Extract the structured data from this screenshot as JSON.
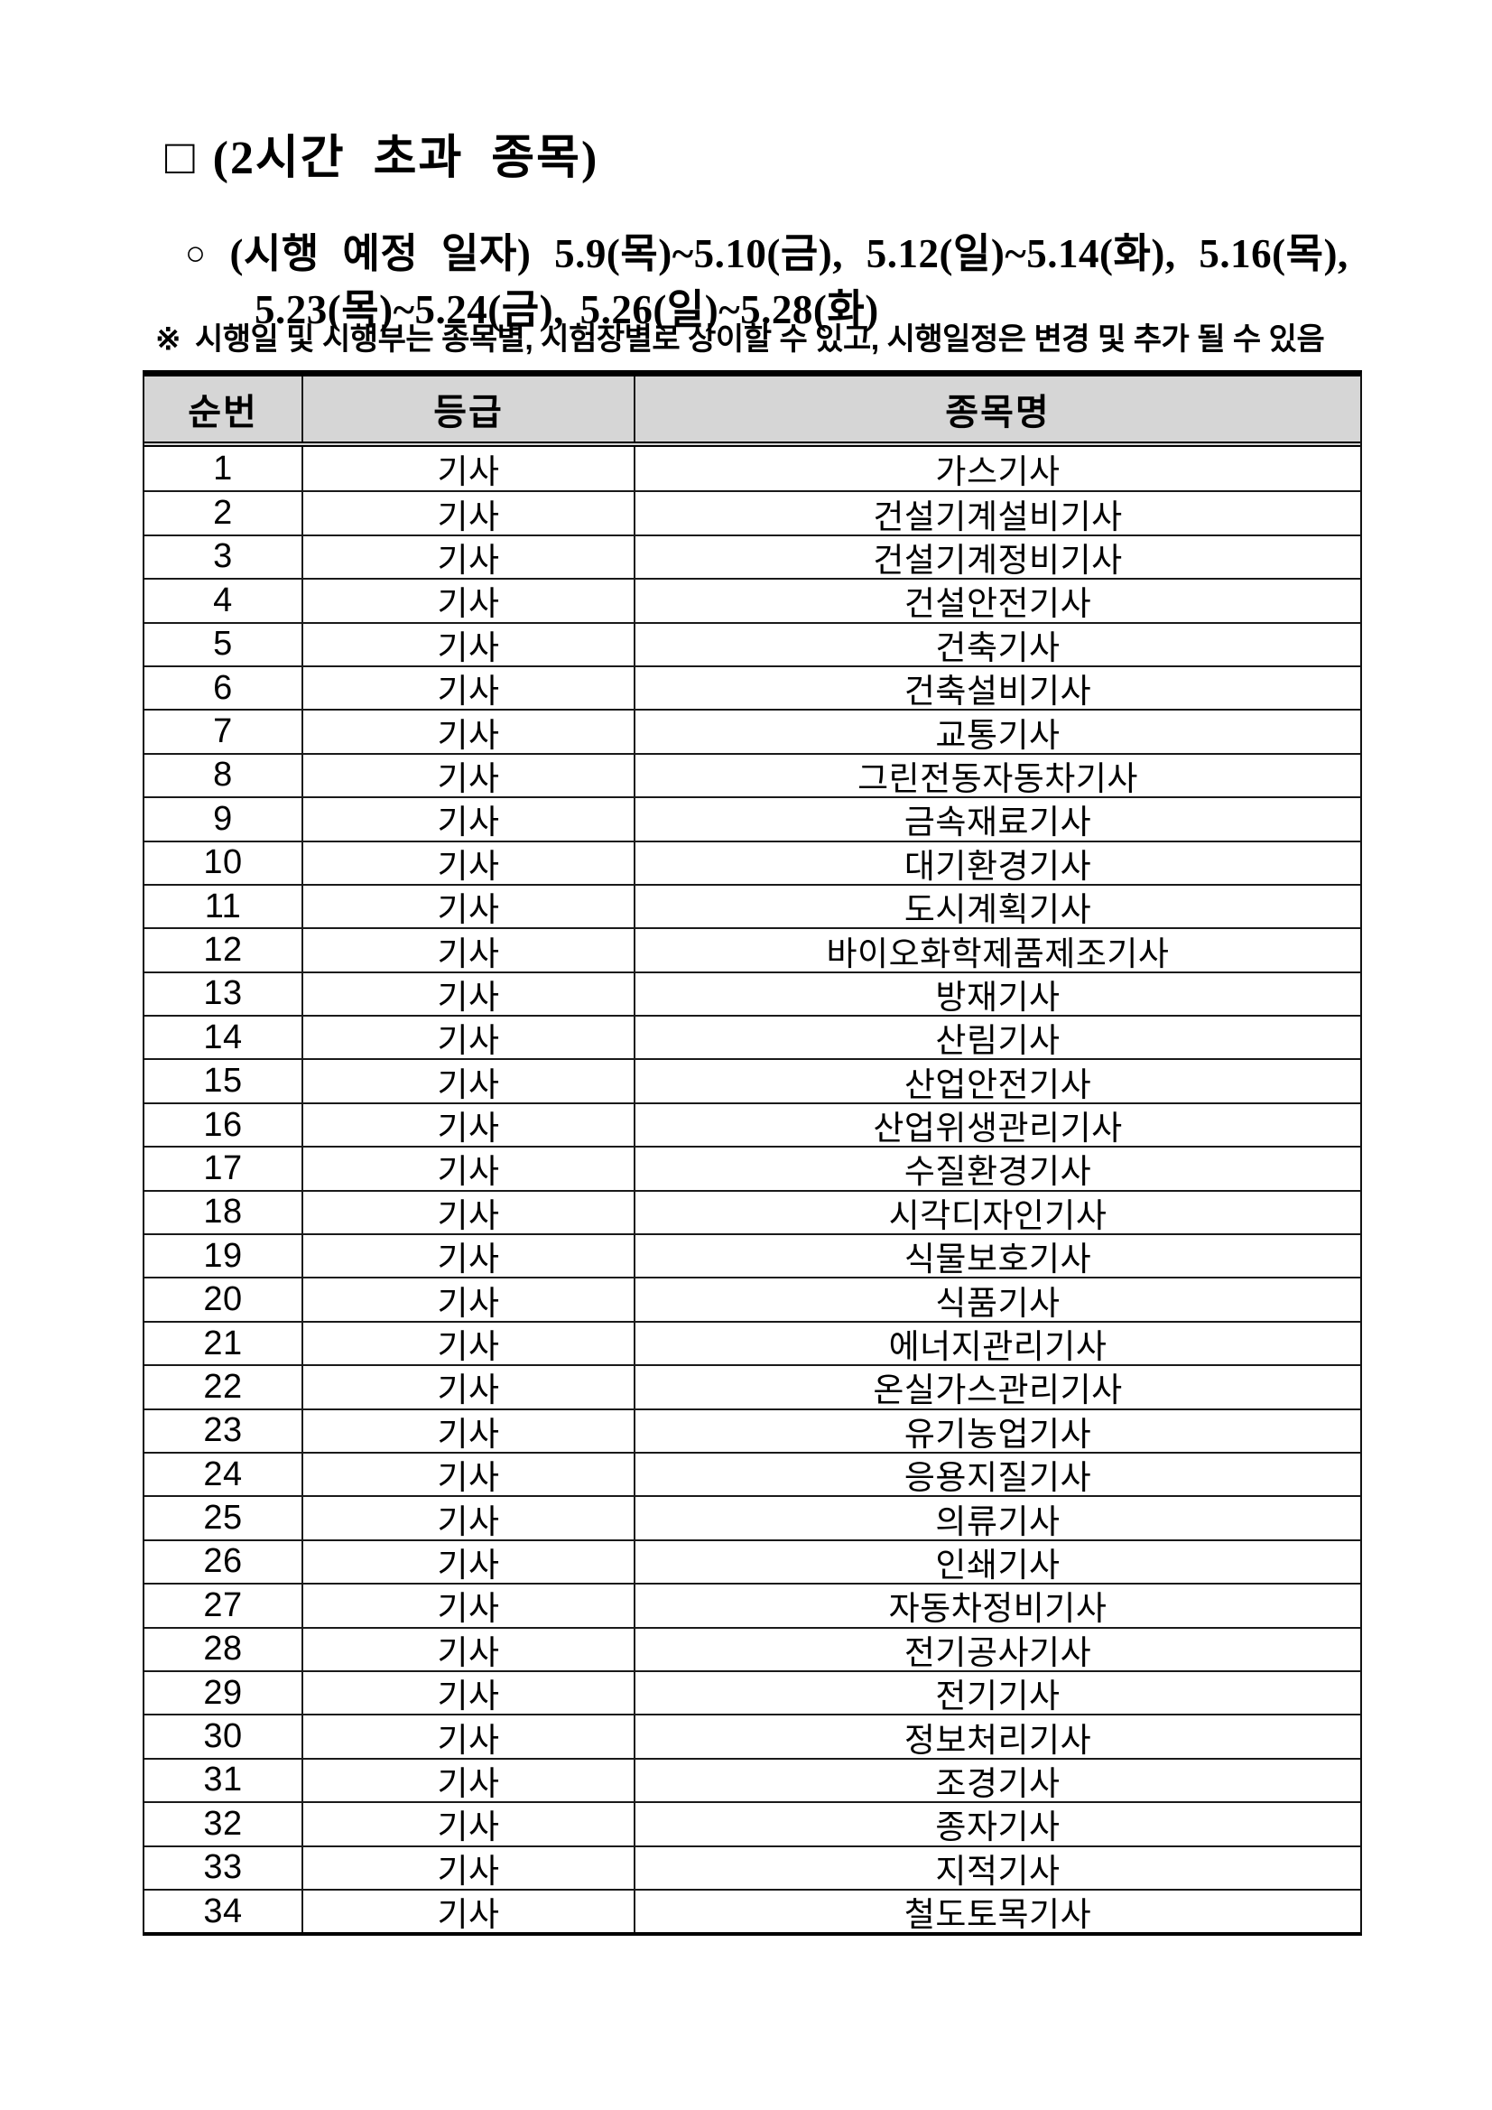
{
  "header": {
    "square_bullet": "□",
    "title": "(2시간 초과 종목)",
    "circle_bullet": "○",
    "schedule_label": "(시행 예정 일자)",
    "schedule_dates_line1": "5.9(목)~5.10(금), 5.12(일)~5.14(화), 5.16(목),",
    "schedule_dates_line2": "5.23(목)~5.24(금), 5.26(일)~5.28(화)",
    "note_marker": "※",
    "note_text": "시행일 및 시행부는 종목별, 시험장별로 상이할 수 있고, 시행일정은 변경 및 추가 될 수 있음"
  },
  "table": {
    "headers": [
      "순번",
      "등급",
      "종목명"
    ],
    "rows": [
      [
        "1",
        "기사",
        "가스기사"
      ],
      [
        "2",
        "기사",
        "건설기계설비기사"
      ],
      [
        "3",
        "기사",
        "건설기계정비기사"
      ],
      [
        "4",
        "기사",
        "건설안전기사"
      ],
      [
        "5",
        "기사",
        "건축기사"
      ],
      [
        "6",
        "기사",
        "건축설비기사"
      ],
      [
        "7",
        "기사",
        "교통기사"
      ],
      [
        "8",
        "기사",
        "그린전동자동차기사"
      ],
      [
        "9",
        "기사",
        "금속재료기사"
      ],
      [
        "10",
        "기사",
        "대기환경기사"
      ],
      [
        "11",
        "기사",
        "도시계획기사"
      ],
      [
        "12",
        "기사",
        "바이오화학제품제조기사"
      ],
      [
        "13",
        "기사",
        "방재기사"
      ],
      [
        "14",
        "기사",
        "산림기사"
      ],
      [
        "15",
        "기사",
        "산업안전기사"
      ],
      [
        "16",
        "기사",
        "산업위생관리기사"
      ],
      [
        "17",
        "기사",
        "수질환경기사"
      ],
      [
        "18",
        "기사",
        "시각디자인기사"
      ],
      [
        "19",
        "기사",
        "식물보호기사"
      ],
      [
        "20",
        "기사",
        "식품기사"
      ],
      [
        "21",
        "기사",
        "에너지관리기사"
      ],
      [
        "22",
        "기사",
        "온실가스관리기사"
      ],
      [
        "23",
        "기사",
        "유기농업기사"
      ],
      [
        "24",
        "기사",
        "응용지질기사"
      ],
      [
        "25",
        "기사",
        "의류기사"
      ],
      [
        "26",
        "기사",
        "인쇄기사"
      ],
      [
        "27",
        "기사",
        "자동차정비기사"
      ],
      [
        "28",
        "기사",
        "전기공사기사"
      ],
      [
        "29",
        "기사",
        "전기기사"
      ],
      [
        "30",
        "기사",
        "정보처리기사"
      ],
      [
        "31",
        "기사",
        "조경기사"
      ],
      [
        "32",
        "기사",
        "종자기사"
      ],
      [
        "33",
        "기사",
        "지적기사"
      ],
      [
        "34",
        "기사",
        "철도토목기사"
      ]
    ]
  },
  "colors": {
    "header_bg": "#d6d6d6",
    "border": "#000000",
    "text": "#000000"
  }
}
